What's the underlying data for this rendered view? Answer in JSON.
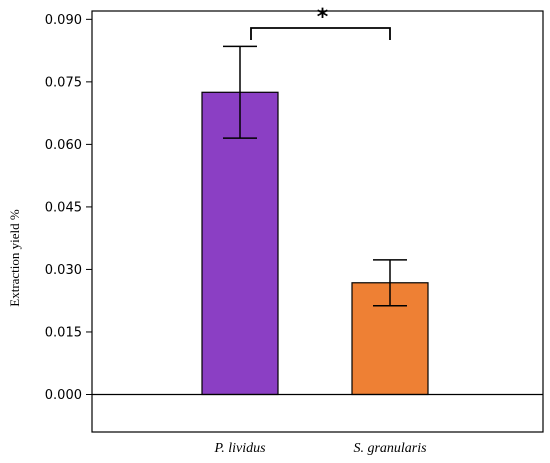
{
  "chart_data": {
    "type": "bar",
    "categories": [
      "P. lividus",
      "S. granularis"
    ],
    "values": [
      0.0725,
      0.0268
    ],
    "errors": [
      0.011,
      0.0055
    ],
    "colors": [
      "#8B3FC4",
      "#EE8034"
    ],
    "ylabel": "Extraction yield %",
    "xlabel": "",
    "ylim": [
      -0.009,
      0.092
    ],
    "yticks": [
      "0.000",
      "0.015",
      "0.030",
      "0.045",
      "0.060",
      "0.075",
      "0.090"
    ],
    "significance": {
      "between": [
        0,
        1
      ],
      "label": "*"
    },
    "grid": false
  }
}
